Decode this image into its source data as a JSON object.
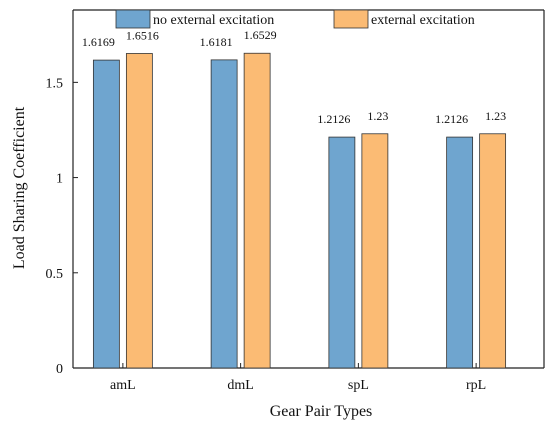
{
  "chart_data": {
    "type": "bar",
    "title": "",
    "xlabel": "Gear Pair Types",
    "ylabel": "Load Sharing Coefficient",
    "categories": [
      "amL",
      "dmL",
      "spL",
      "rpL"
    ],
    "series": [
      {
        "name": "no external excitation",
        "color": "#6fa5cf",
        "values": [
          1.6169,
          1.6181,
          1.2126,
          1.2126
        ],
        "labels": [
          "1.6169",
          "1.6181",
          "1.2126",
          "1.2126"
        ]
      },
      {
        "name": "external excitation",
        "color": "#fbbb74",
        "values": [
          1.6516,
          1.6529,
          1.23,
          1.23
        ],
        "labels": [
          "1.6516",
          "1.6529",
          "1.23",
          "1.23"
        ]
      }
    ],
    "yticks": [
      0,
      0.5,
      1,
      1.5
    ],
    "ytick_labels": [
      "0",
      "0.5",
      "1",
      "1.5"
    ],
    "ylim": [
      0,
      1.88
    ],
    "grid": false,
    "legend_position": "top"
  }
}
